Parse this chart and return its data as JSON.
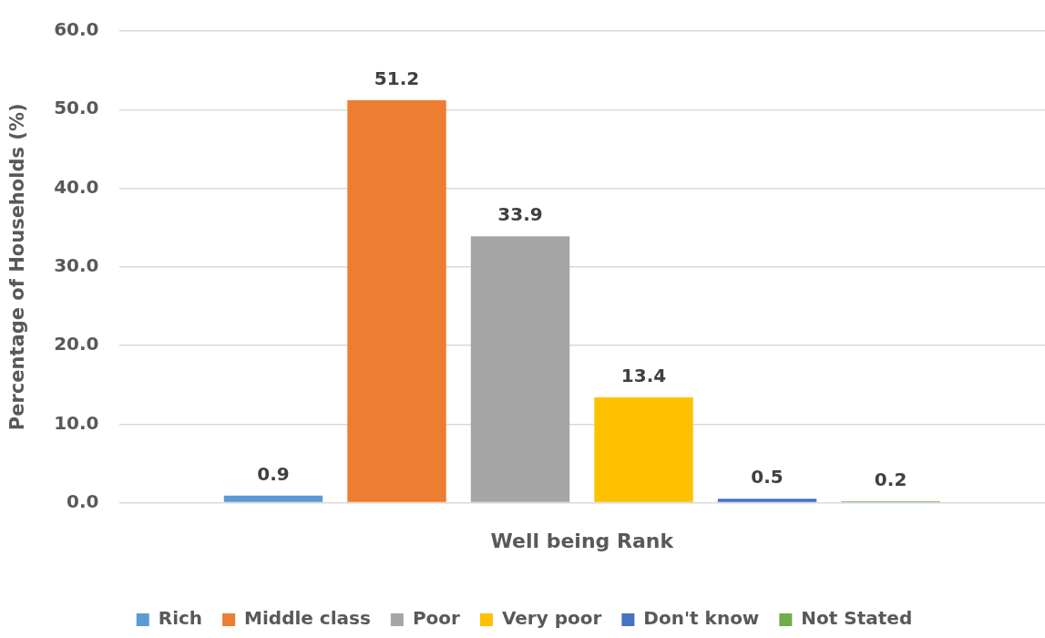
{
  "chart_data": {
    "type": "bar",
    "xlabel": "Well being Rank",
    "ylabel": "Percentage of Households (%)",
    "categories": [
      null
    ],
    "series": [
      {
        "name": "Rich",
        "color": "#5b9bd5",
        "values": [
          0.9
        ]
      },
      {
        "name": "Middle class",
        "color": "#ed7d31",
        "values": [
          51.2
        ]
      },
      {
        "name": "Poor",
        "color": "#a5a5a5",
        "values": [
          33.9
        ]
      },
      {
        "name": "Very poor",
        "color": "#ffc000",
        "values": [
          13.4
        ]
      },
      {
        "name": "Don't know",
        "color": "#4472c4",
        "values": [
          0.5
        ]
      },
      {
        "name": "Not Stated",
        "color": "#70ad47",
        "values": [
          0.2
        ]
      }
    ],
    "ylim": [
      0,
      60
    ],
    "yticks": [
      {
        "value": 0,
        "label": "0.0"
      },
      {
        "value": 10,
        "label": "10.0"
      },
      {
        "value": 20,
        "label": "20.0"
      },
      {
        "value": 30,
        "label": "30.0"
      },
      {
        "value": 40,
        "label": "40.0"
      },
      {
        "value": 50,
        "label": "50.0"
      },
      {
        "value": 60,
        "label": "60.0"
      }
    ],
    "grid": "y",
    "legend": "bottom",
    "data_labels": true,
    "tick_labels": "y"
  }
}
